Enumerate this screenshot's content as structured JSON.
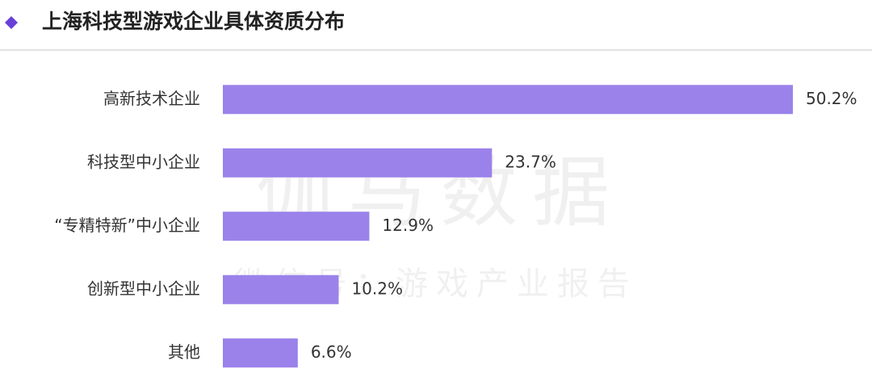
{
  "chart_data": {
    "type": "hbar",
    "title": "上海科技型游戏企业具体资质分布",
    "categories": [
      "高新技术企业",
      "科技型中小企业",
      "“专精特新”中小企业",
      "创新型中小企业",
      "其他"
    ],
    "values": [
      50.2,
      23.7,
      12.9,
      10.2,
      6.6
    ],
    "value_labels": [
      "50.2%",
      "23.7%",
      "12.9%",
      "10.2%",
      "6.6%"
    ],
    "color": "#9a82ea",
    "watermark": "伽马数据",
    "watermark_subtitle": "微信号：游戏产业报告"
  }
}
